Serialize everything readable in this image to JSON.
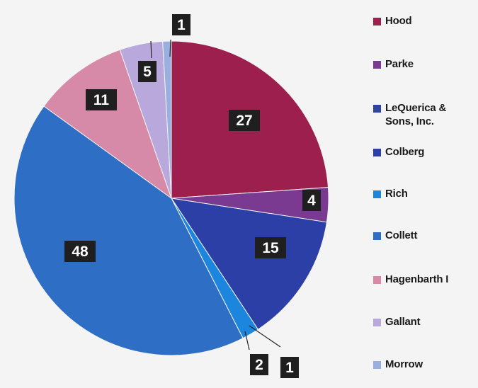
{
  "chart_data": {
    "type": "pie",
    "title": "",
    "start_angle_deg": 0,
    "direction": "clockwise",
    "legend_position": "right",
    "slices": [
      {
        "name": "Hood",
        "value": 27,
        "label": "27",
        "color": "#9c1f4e"
      },
      {
        "name": "Parke",
        "value": 4,
        "label": "4",
        "color": "#7a3a92"
      },
      {
        "name": "LeQuerica & Sons, Inc.",
        "value": 0,
        "label": "",
        "color": "#2e44a0"
      },
      {
        "name": "Colberg",
        "value": 15,
        "label": "15",
        "color": "#2b3fa6"
      },
      {
        "name": "Rich",
        "value": 2,
        "label": "2",
        "color": "#1c86de"
      },
      {
        "name": "Collett",
        "value": 48,
        "label": "48",
        "color": "#2e6ec4"
      },
      {
        "name": "Hagenbarth I",
        "value": 11,
        "label": "11",
        "color": "#d68aa8"
      },
      {
        "name": "Gallant",
        "value": 5,
        "label": "5",
        "color": "#b8a8dc"
      },
      {
        "name": "Morrow",
        "value": 1,
        "label": "1",
        "color": "#9aaee0"
      }
    ],
    "external_labels": [
      {
        "text": "1"
      }
    ]
  },
  "legend": {
    "items": [
      {
        "label": "Hood",
        "color": "#9c1f4e"
      },
      {
        "label": "Parke",
        "color": "#7a3a92"
      },
      {
        "label": "LeQuerica & Sons, Inc.",
        "color": "#2e44a0"
      },
      {
        "label": "Colberg",
        "color": "#2b3fa6"
      },
      {
        "label": "Rich",
        "color": "#1c86de"
      },
      {
        "label": "Collett",
        "color": "#2e6ec4"
      },
      {
        "label": "Hagenbarth I",
        "color": "#d68aa8"
      },
      {
        "label": "Gallant",
        "color": "#b8a8dc"
      },
      {
        "label": "Morrow",
        "color": "#9aaee0"
      }
    ]
  }
}
